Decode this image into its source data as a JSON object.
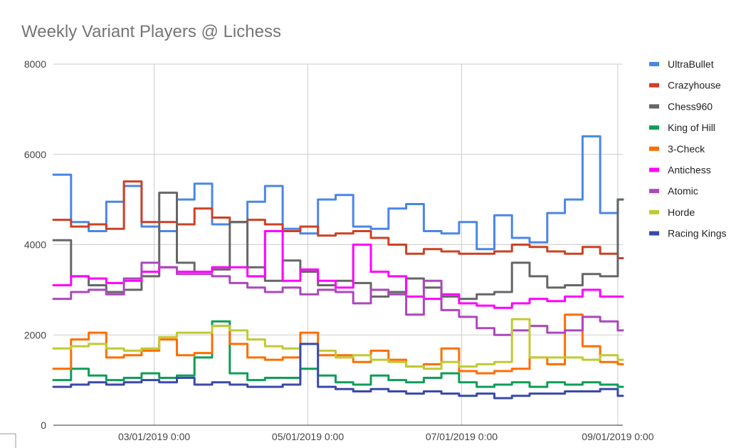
{
  "chart_data": {
    "type": "line",
    "title": "Weekly Variant Players @ Lichess",
    "xlabel": "",
    "ylabel": "",
    "ylim": [
      0,
      8000
    ],
    "yticks": [
      "0",
      "2000",
      "4000",
      "6000",
      "8000"
    ],
    "xlim": [
      "2019-01-20",
      "2019-09-03"
    ],
    "xticks": [
      {
        "date": "2019-03-01",
        "label": "03/01/2019 0:00"
      },
      {
        "date": "2019-05-01",
        "label": "05/01/2019 0:00"
      },
      {
        "date": "2019-07-01",
        "label": "07/01/2019 0:00"
      },
      {
        "date": "2019-09-01",
        "label": "09/01/2019 0:00"
      }
    ],
    "grid": "vertical",
    "legend": "right",
    "x": [
      "2019-01-20",
      "2019-01-27",
      "2019-02-03",
      "2019-02-10",
      "2019-02-17",
      "2019-02-24",
      "2019-03-03",
      "2019-03-10",
      "2019-03-17",
      "2019-03-24",
      "2019-03-31",
      "2019-04-07",
      "2019-04-14",
      "2019-04-21",
      "2019-04-28",
      "2019-05-05",
      "2019-05-12",
      "2019-05-19",
      "2019-05-26",
      "2019-06-02",
      "2019-06-09",
      "2019-06-16",
      "2019-06-23",
      "2019-06-30",
      "2019-07-07",
      "2019-07-14",
      "2019-07-21",
      "2019-07-28",
      "2019-08-04",
      "2019-08-11",
      "2019-08-18",
      "2019-08-25",
      "2019-09-01"
    ],
    "series": [
      {
        "name": "UltraBullet",
        "color": "#4a86e8",
        "values": [
          5550,
          4500,
          4300,
          4950,
          5300,
          4400,
          4300,
          5000,
          5350,
          4450,
          4500,
          4950,
          5300,
          4350,
          4250,
          5000,
          5100,
          4400,
          4350,
          4800,
          4900,
          4300,
          4250,
          4500,
          3900,
          4650,
          4150,
          4050,
          4700,
          5000,
          6400,
          4700,
          5000
        ]
      },
      {
        "name": "Crazyhouse",
        "color": "#cc4125",
        "values": [
          4550,
          4400,
          4450,
          4350,
          5400,
          4500,
          4500,
          4450,
          4800,
          4600,
          4500,
          4550,
          4450,
          4300,
          4400,
          4200,
          4250,
          4300,
          4150,
          4000,
          3800,
          3900,
          3850,
          3800,
          3800,
          3850,
          4000,
          3950,
          3850,
          3800,
          3950,
          3800,
          3700
        ]
      },
      {
        "name": "Chess960",
        "color": "#666666",
        "values": [
          4100,
          3300,
          3100,
          2950,
          3000,
          3300,
          5150,
          3600,
          3400,
          3450,
          4500,
          3500,
          3200,
          3650,
          3400,
          3100,
          3200,
          3150,
          2850,
          2950,
          3250,
          3050,
          2850,
          2800,
          2900,
          2950,
          3600,
          3300,
          3050,
          3100,
          3350,
          3300,
          5000
        ]
      },
      {
        "name": "King of Hill",
        "color": "#0f9d58",
        "values": [
          1000,
          1250,
          1100,
          1000,
          1050,
          1150,
          1050,
          1100,
          1500,
          2300,
          1150,
          1000,
          1050,
          1050,
          1250,
          1100,
          950,
          900,
          1100,
          1000,
          950,
          1050,
          1150,
          950,
          850,
          900,
          950,
          850,
          950,
          900,
          950,
          900,
          850
        ]
      },
      {
        "name": "3-Check",
        "color": "#ff6d00",
        "values": [
          1250,
          1900,
          2050,
          1500,
          1550,
          1650,
          1900,
          1550,
          1600,
          2200,
          1800,
          1500,
          1450,
          1500,
          2050,
          1550,
          1550,
          1400,
          1650,
          1450,
          1300,
          1350,
          1700,
          1200,
          1150,
          1200,
          1250,
          1500,
          1350,
          2450,
          1750,
          1400,
          1350
        ]
      },
      {
        "name": "Antichess",
        "color": "#ff00ff",
        "values": [
          3100,
          3300,
          3250,
          3150,
          3200,
          3400,
          3500,
          3400,
          3400,
          3500,
          3500,
          3300,
          4300,
          3200,
          3450,
          3200,
          3050,
          4000,
          3400,
          3300,
          2850,
          2800,
          2900,
          2700,
          2650,
          2600,
          2700,
          2800,
          2750,
          2850,
          3000,
          2850,
          2850
        ]
      },
      {
        "name": "Atomic",
        "color": "#ab47bc",
        "values": [
          2800,
          2950,
          3000,
          2900,
          3250,
          3600,
          3500,
          3350,
          3350,
          3300,
          3150,
          3050,
          2950,
          3050,
          2900,
          3000,
          2950,
          2700,
          3000,
          2900,
          2450,
          3200,
          2550,
          2400,
          2150,
          2000,
          2100,
          2200,
          2050,
          2100,
          2400,
          2300,
          2100
        ]
      },
      {
        "name": "Horde",
        "color": "#c0ca33",
        "values": [
          1700,
          1750,
          1800,
          1700,
          1650,
          1700,
          1950,
          2050,
          2050,
          2200,
          2100,
          1900,
          1750,
          1700,
          1800,
          1650,
          1500,
          1550,
          1450,
          1400,
          1300,
          1250,
          1400,
          1300,
          1350,
          1400,
          2350,
          1500,
          1500,
          1500,
          1450,
          1550,
          1450
        ]
      },
      {
        "name": "Racing Kings",
        "color": "#3949ab",
        "values": [
          850,
          900,
          950,
          900,
          950,
          1000,
          950,
          1050,
          900,
          950,
          900,
          850,
          850,
          900,
          1800,
          850,
          800,
          750,
          800,
          750,
          700,
          750,
          700,
          650,
          700,
          600,
          650,
          700,
          700,
          750,
          750,
          800,
          650
        ]
      }
    ]
  }
}
